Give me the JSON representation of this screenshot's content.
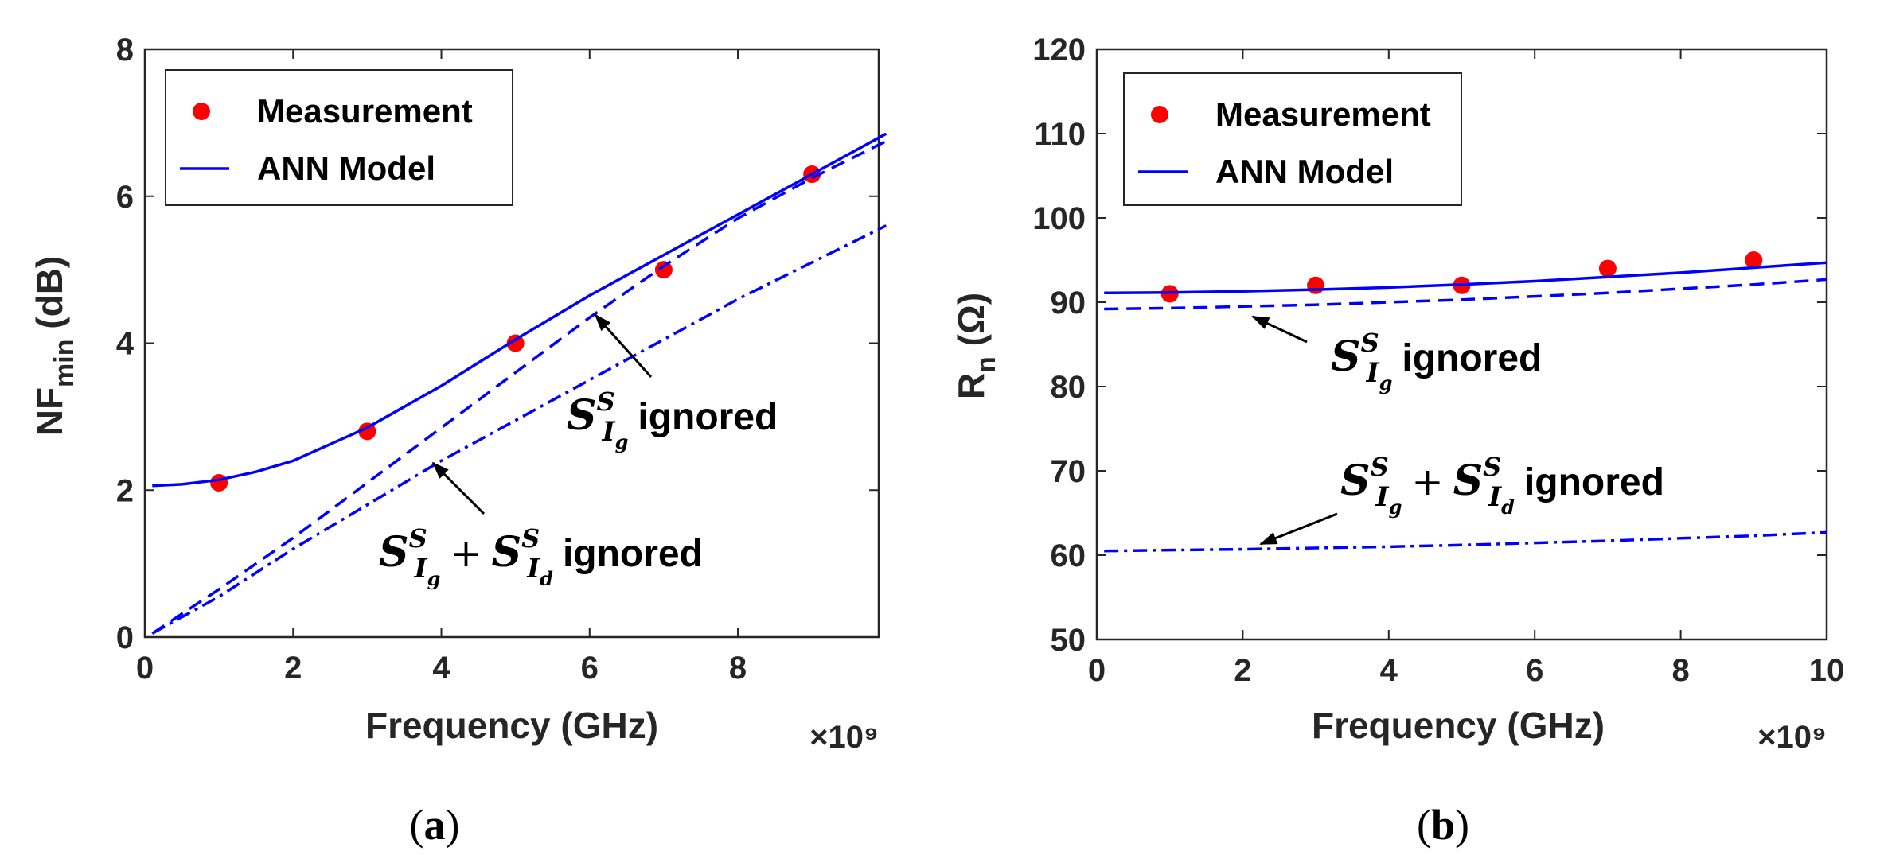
{
  "chart_data": [
    {
      "type": "line",
      "panel_label": "a",
      "xlabel": "Frequency (GHz)",
      "x_multiplier": "×10⁹",
      "ylabel_main": "NF",
      "ylabel_sub": "min",
      "ylabel_unit": "(dB)",
      "xlim": [
        0,
        10
      ],
      "ylim": [
        0,
        8
      ],
      "xticks": [
        0,
        2,
        4,
        6,
        8
      ],
      "yticks": [
        0,
        2,
        4,
        6,
        8
      ],
      "grid": false,
      "legend_position": "top-left",
      "legend": [
        "Measurement",
        "ANN Model"
      ],
      "series": [
        {
          "name": "Measurement",
          "kind": "scatter",
          "color": "#ff0000",
          "x": [
            1,
            3,
            5,
            7,
            9
          ],
          "y": [
            2.1,
            2.8,
            4.0,
            5.0,
            6.3
          ]
        },
        {
          "name": "ANN Model",
          "kind": "line",
          "style": "solid",
          "color": "#0000ff",
          "x": [
            0.1,
            0.5,
            1.0,
            1.5,
            2.0,
            3.0,
            4.0,
            5.0,
            6.0,
            7.0,
            8.0,
            9.0,
            10.0
          ],
          "y": [
            2.06,
            2.08,
            2.14,
            2.25,
            2.4,
            2.85,
            3.42,
            4.05,
            4.65,
            5.2,
            5.75,
            6.3,
            6.85
          ]
        },
        {
          "kind": "line",
          "style": "dashed",
          "color": "#0000ff",
          "x": [
            0.1,
            1.0,
            2.0,
            3.0,
            4.0,
            5.0,
            6.0,
            7.0,
            8.0,
            9.0,
            10.0
          ],
          "y": [
            0.05,
            0.65,
            1.35,
            2.1,
            2.85,
            3.6,
            4.35,
            5.05,
            5.7,
            6.25,
            6.75
          ]
        },
        {
          "kind": "line",
          "style": "dashdot",
          "color": "#0000ff",
          "x": [
            0.1,
            1.0,
            2.0,
            3.0,
            4.0,
            5.0,
            6.0,
            7.0,
            8.0,
            9.0,
            10.0
          ],
          "y": [
            0.05,
            0.55,
            1.2,
            1.8,
            2.4,
            2.95,
            3.5,
            4.05,
            4.6,
            5.1,
            5.6
          ]
        }
      ],
      "annotations": [
        {
          "id": "sig",
          "suffix": "ignored",
          "terms": [
            [
              "S",
              "S",
              "I",
              "g"
            ]
          ]
        },
        {
          "id": "sig-sid",
          "suffix": "ignored",
          "terms": [
            [
              "S",
              "S",
              "I",
              "g"
            ],
            [
              "S",
              "S",
              "I",
              "d"
            ]
          ],
          "operator": "+"
        }
      ]
    },
    {
      "type": "line",
      "panel_label": "b",
      "xlabel": "Frequency (GHz)",
      "x_multiplier": "×10⁹",
      "ylabel_main": "R",
      "ylabel_sub": "n",
      "ylabel_unit": "(Ω)",
      "xlim": [
        0,
        10
      ],
      "ylim": [
        50,
        120
      ],
      "xticks": [
        0,
        2,
        4,
        6,
        8,
        10
      ],
      "yticks": [
        50,
        60,
        70,
        80,
        90,
        100,
        110,
        120
      ],
      "grid": false,
      "legend_position": "top-left",
      "legend": [
        "Measurement",
        "ANN Model"
      ],
      "series": [
        {
          "name": "Measurement",
          "kind": "scatter",
          "color": "#ff0000",
          "x": [
            1,
            3,
            5,
            7,
            9
          ],
          "y": [
            91,
            92,
            92,
            94,
            95
          ]
        },
        {
          "name": "ANN Model",
          "kind": "line",
          "style": "solid",
          "color": "#0000ff",
          "x": [
            0.1,
            1,
            2,
            3,
            4,
            5,
            6,
            7,
            8,
            9,
            10
          ],
          "y": [
            91.1,
            91.15,
            91.3,
            91.5,
            91.75,
            92.1,
            92.5,
            93.0,
            93.5,
            94.1,
            94.7
          ]
        },
        {
          "kind": "line",
          "style": "dashed",
          "color": "#0000ff",
          "x": [
            0.1,
            1,
            2,
            3,
            4,
            5,
            6,
            7,
            8,
            9,
            10
          ],
          "y": [
            89.2,
            89.3,
            89.5,
            89.7,
            90.0,
            90.3,
            90.7,
            91.1,
            91.6,
            92.1,
            92.7
          ]
        },
        {
          "kind": "line",
          "style": "dashdot",
          "color": "#0000ff",
          "x": [
            0.1,
            1,
            2,
            3,
            4,
            5,
            6,
            7,
            8,
            9,
            10
          ],
          "y": [
            60.5,
            60.6,
            60.7,
            60.85,
            61.0,
            61.2,
            61.45,
            61.7,
            62.0,
            62.3,
            62.7
          ]
        }
      ],
      "annotations": [
        {
          "id": "sig",
          "suffix": "ignored",
          "terms": [
            [
              "S",
              "S",
              "I",
              "g"
            ]
          ]
        },
        {
          "id": "sig-sid",
          "suffix": "ignored",
          "terms": [
            [
              "S",
              "S",
              "I",
              "g"
            ],
            [
              "S",
              "S",
              "I",
              "d"
            ]
          ],
          "operator": "+"
        }
      ]
    }
  ]
}
